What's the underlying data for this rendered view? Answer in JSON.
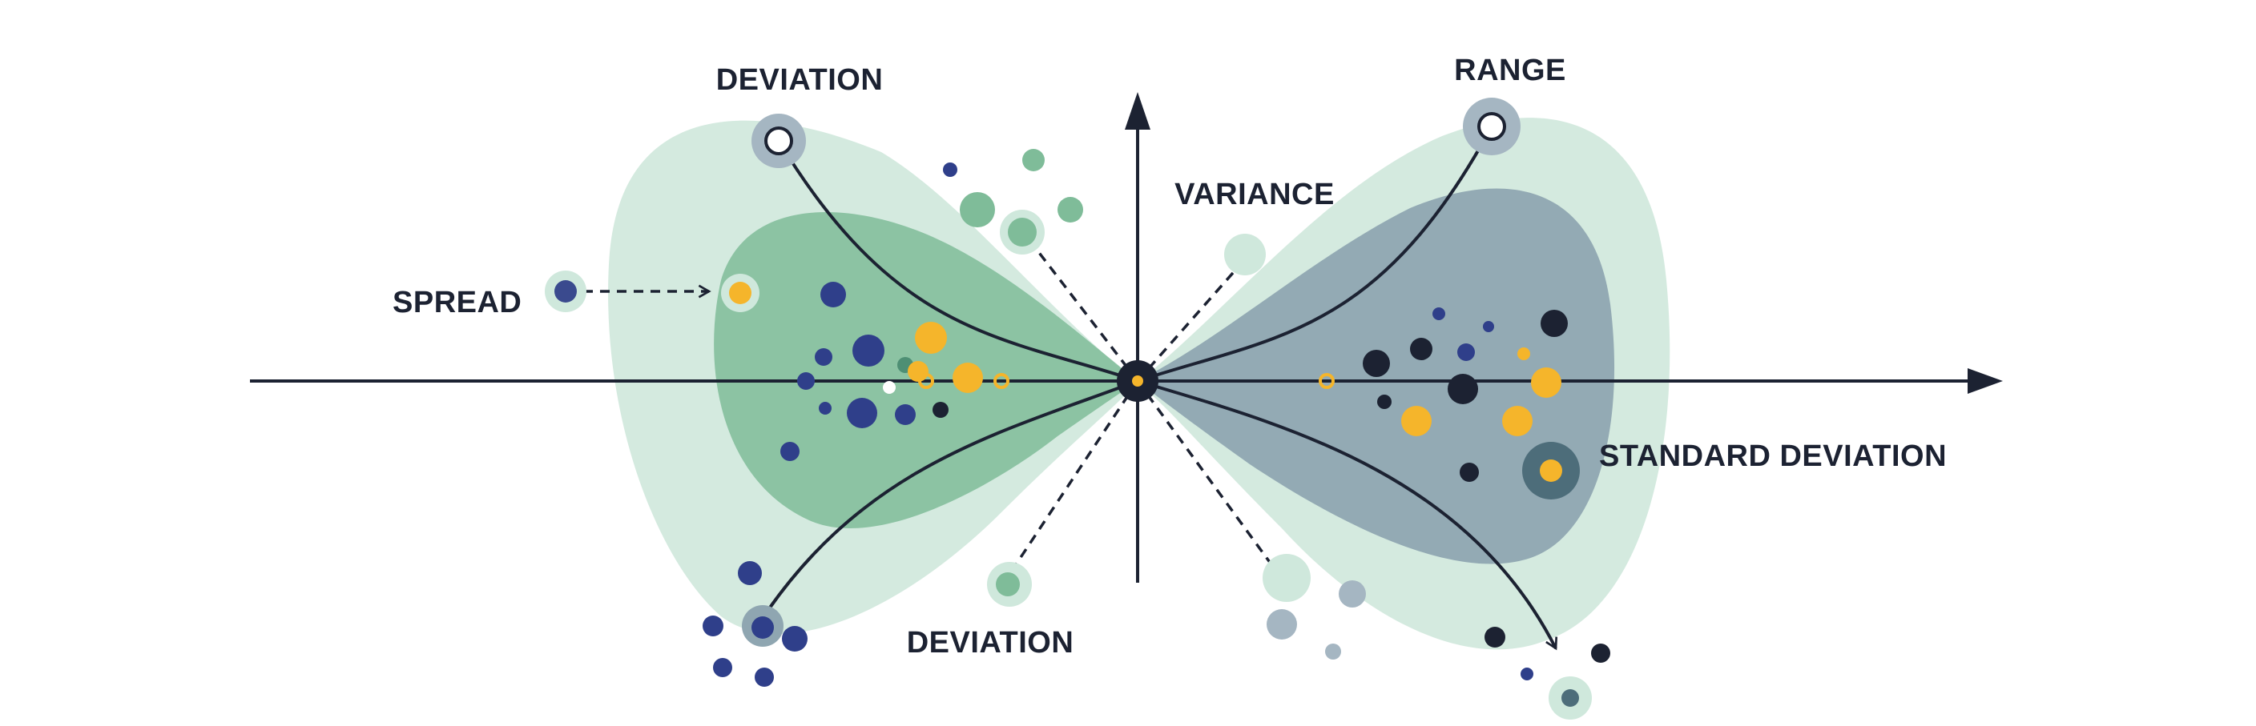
{
  "labels": {
    "deviation_top": "DEVIATION",
    "range": "RANGE",
    "variance": "VARIANCE",
    "spread": "SPREAD",
    "standard_deviation": "STANDARD DEVIATION",
    "deviation_bottom": "DEVIATION"
  },
  "colors": {
    "background": "#ffffff",
    "light_green": "#cfe8dc",
    "mid_green": "#7fbc99",
    "slate": "#8fa6b1",
    "navy": "#2f3f8a",
    "gold": "#f5b52b",
    "ink": "#1c2232"
  }
}
